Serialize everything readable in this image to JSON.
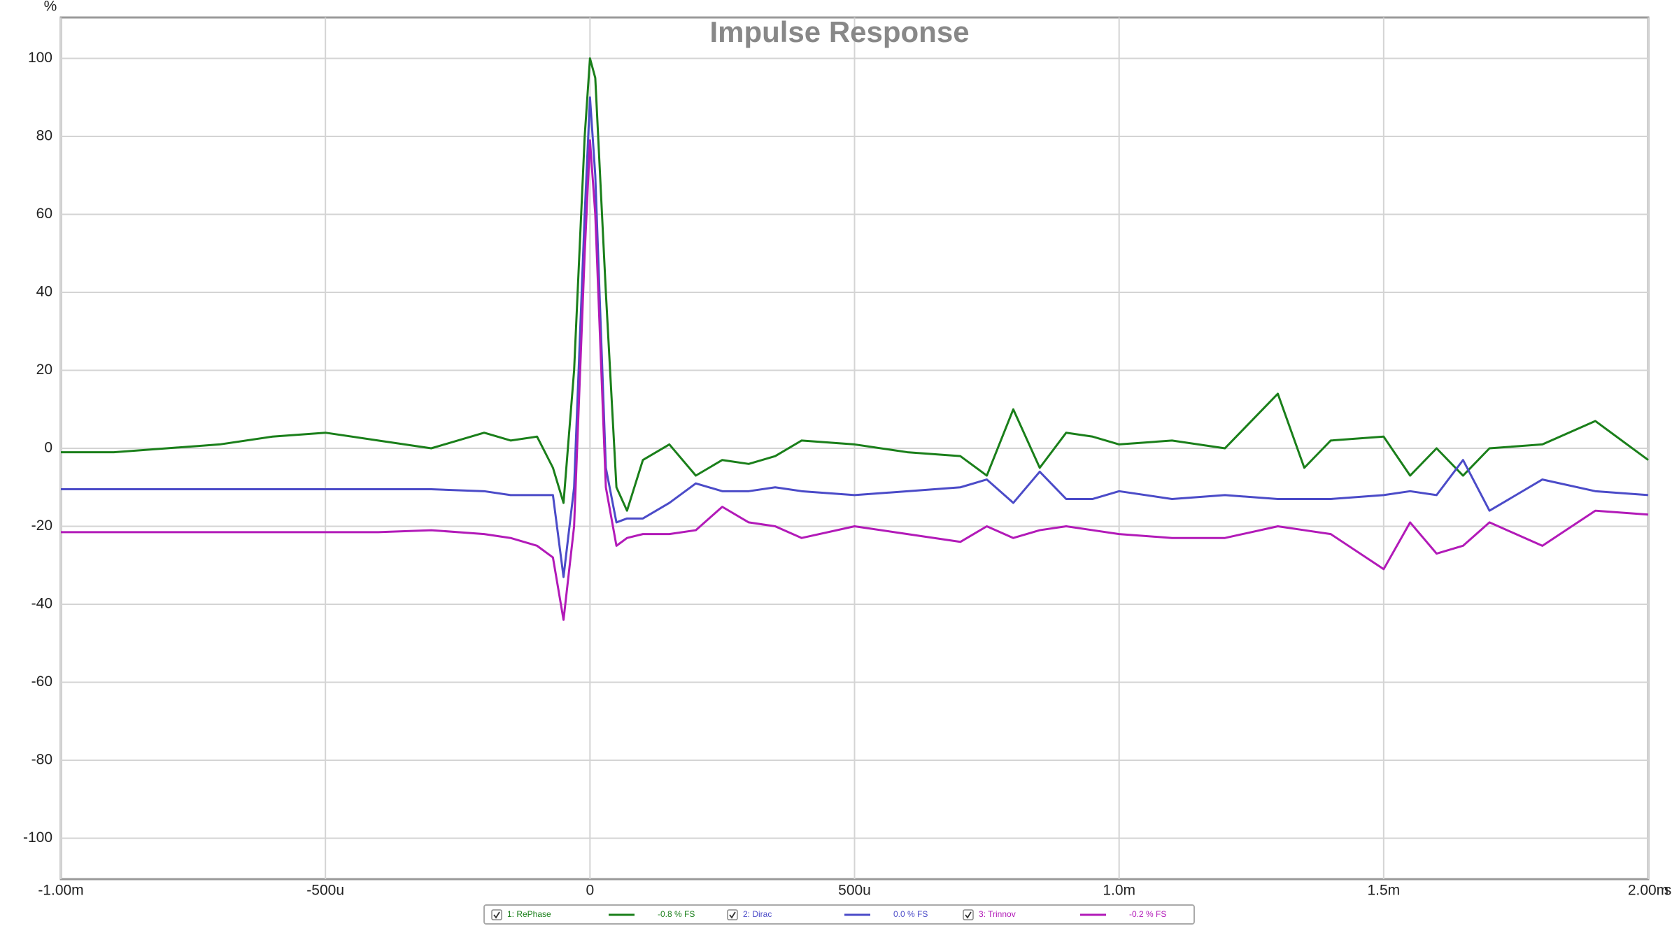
{
  "chart_data": {
    "type": "line",
    "title": "Impulse Response",
    "y_label": "%",
    "x_label": "s",
    "x": [
      -0.001,
      -0.0009,
      -0.0008,
      -0.0007,
      -0.0006,
      -0.0005,
      -0.0004,
      -0.0003,
      -0.0002,
      -0.00015,
      -0.0001,
      -7e-05,
      -5e-05,
      -3e-05,
      -1e-05,
      0,
      1e-05,
      3e-05,
      5e-05,
      7e-05,
      0.0001,
      0.00015,
      0.0002,
      0.00025,
      0.0003,
      0.00035,
      0.0004,
      0.0005,
      0.0006,
      0.0007,
      0.00075,
      0.0008,
      0.00085,
      0.0009,
      0.00095,
      0.001,
      0.0011,
      0.0012,
      0.0013,
      0.00135,
      0.0014,
      0.0015,
      0.00155,
      0.0016,
      0.00165,
      0.0017,
      0.0018,
      0.0019,
      0.002
    ],
    "series": [
      {
        "name": "1: RePhase",
        "note": "-0.8 % FS",
        "color": "#1a7f1a",
        "values": [
          -1,
          -1,
          0,
          1,
          3,
          4,
          2,
          0,
          4,
          2,
          3,
          -5,
          -14,
          20,
          80,
          100,
          95,
          40,
          -10,
          -16,
          -3,
          1,
          -7,
          -3,
          -4,
          -2,
          2,
          1,
          -1,
          -2,
          -7,
          10,
          -5,
          4,
          3,
          1,
          2,
          0,
          14,
          -5,
          2,
          3,
          -7,
          0,
          -7,
          0,
          1,
          7,
          -3
        ]
      },
      {
        "name": "2: Dirac",
        "note": "0.0 % FS",
        "color": "#4b4bc8",
        "values": [
          -10.5,
          -10.5,
          -10.5,
          -10.5,
          -10.5,
          -10.5,
          -10.5,
          -10.5,
          -11,
          -12,
          -12,
          -12,
          -33,
          -10,
          60,
          90,
          70,
          -5,
          -19,
          -18,
          -18,
          -14,
          -9,
          -11,
          -11,
          -10,
          -11,
          -12,
          -11,
          -10,
          -8,
          -14,
          -6,
          -13,
          -13,
          -11,
          -13,
          -12,
          -13,
          -13,
          -13,
          -12,
          -11,
          -12,
          -3,
          -16,
          -8,
          -11,
          -12
        ]
      },
      {
        "name": "3: Trinnov",
        "note": "-0.2 % FS",
        "color": "#b21ab8",
        "values": [
          -21.5,
          -21.5,
          -21.5,
          -21.5,
          -21.5,
          -21.5,
          -21.5,
          -21,
          -22,
          -23,
          -25,
          -28,
          -44,
          -20,
          50,
          79,
          60,
          -10,
          -25,
          -23,
          -22,
          -22,
          -21,
          -15,
          -19,
          -20,
          -23,
          -20,
          -22,
          -24,
          -20,
          -23,
          -21,
          -20,
          -21,
          -22,
          -23,
          -23,
          -20,
          -21,
          -22,
          -31,
          -19,
          -27,
          -25,
          -19,
          -25,
          -16,
          -17
        ]
      }
    ],
    "xlim": [
      -0.001,
      0.002
    ],
    "xticks": [
      {
        "value": -0.001,
        "label": "-1.00m"
      },
      {
        "value": -0.0005,
        "label": "-500u"
      },
      0,
      {
        "value": 0.0005,
        "label": "500u"
      },
      {
        "value": 0.001,
        "label": "1.0m"
      },
      {
        "value": 0.0015,
        "label": "1.5m"
      },
      {
        "value": 0.002,
        "label": "2.00m"
      }
    ],
    "ylim": [
      -110.5,
      110.5
    ],
    "yticks": [
      -100,
      -80,
      -60,
      -40,
      -20,
      0,
      20,
      40,
      60,
      80,
      100
    ],
    "grid": true
  }
}
